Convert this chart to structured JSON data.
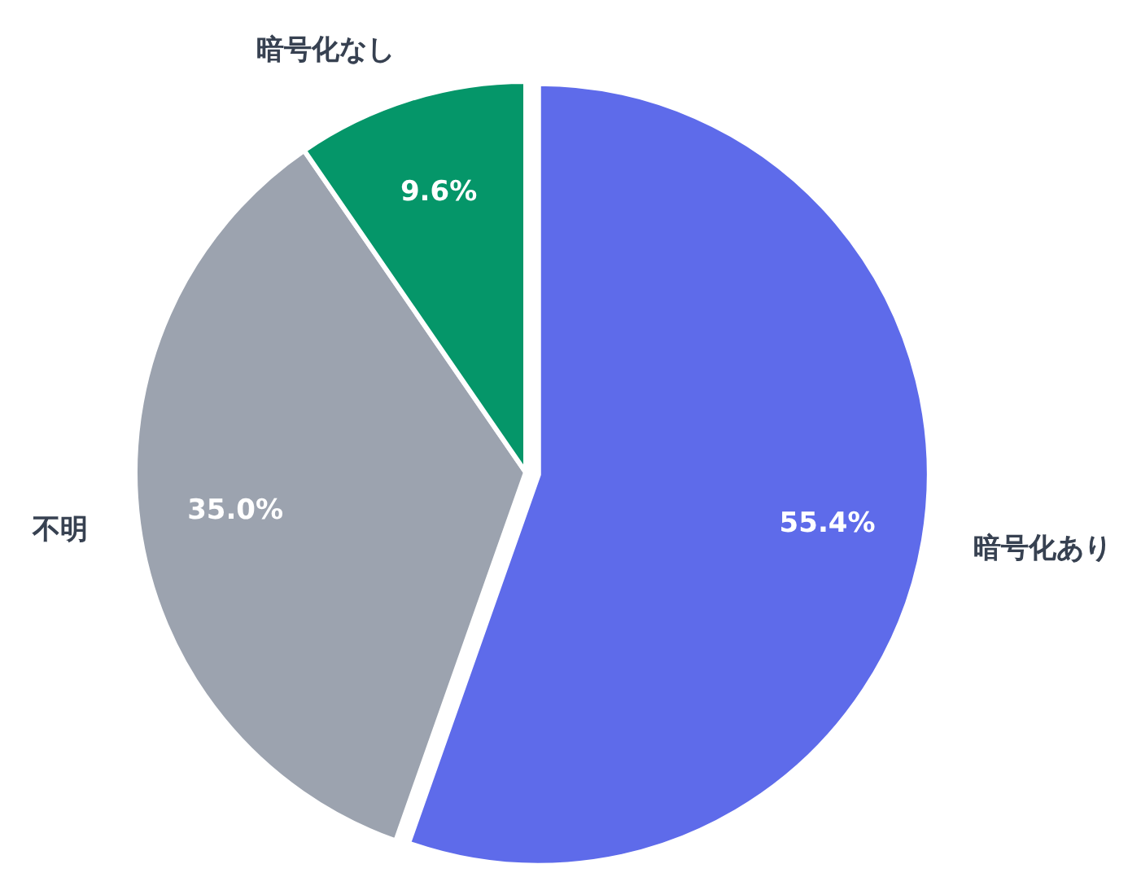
{
  "chart_data": {
    "type": "pie",
    "categories": [
      "暗号化あり",
      "不明",
      "暗号化なし"
    ],
    "values": [
      55.4,
      35.0,
      9.6
    ],
    "colors": [
      "#5e6bea",
      "#9ca3af",
      "#059669"
    ],
    "value_labels": [
      "55.4%",
      "35.0%",
      "9.6%"
    ]
  }
}
